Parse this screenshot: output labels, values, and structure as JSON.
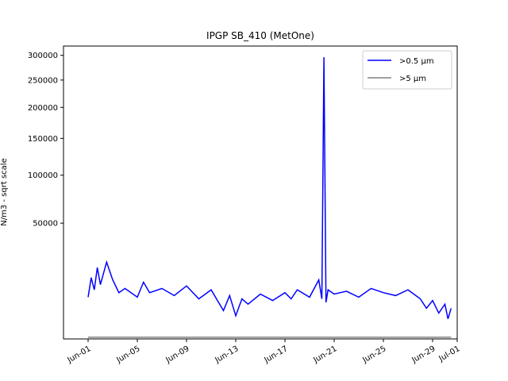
{
  "chart_data": {
    "type": "line",
    "title": "IPGP SB_410 (MetOne)",
    "xlabel": "",
    "ylabel": "N/m3 - sqrt scale",
    "y_scale": "sqrt",
    "ylim": [
      0,
      320000
    ],
    "xlim": [
      "2024-05-30",
      "2024-07-01"
    ],
    "x_ticks": [
      {
        "date": "2024-06-01",
        "label": "Jun-01"
      },
      {
        "date": "2024-06-05",
        "label": "Jun-05"
      },
      {
        "date": "2024-06-09",
        "label": "Jun-09"
      },
      {
        "date": "2024-06-13",
        "label": "Jun-13"
      },
      {
        "date": "2024-06-17",
        "label": "Jun-17"
      },
      {
        "date": "2024-06-21",
        "label": "Jun-21"
      },
      {
        "date": "2024-06-25",
        "label": "Jun-25"
      },
      {
        "date": "2024-06-29",
        "label": "Jun-29"
      },
      {
        "date": "2024-07-01",
        "label": "Jul-01"
      }
    ],
    "y_ticks": [
      {
        "value": 50000,
        "label": "50000"
      },
      {
        "value": 100000,
        "label": "100000"
      },
      {
        "value": 150000,
        "label": "150000"
      },
      {
        "value": 200000,
        "label": "200000"
      },
      {
        "value": 250000,
        "label": "250000"
      },
      {
        "value": 300000,
        "label": "300000"
      }
    ],
    "legend": "top-right",
    "grid": false,
    "series": [
      {
        "name": ">0.5 µm",
        "color": "#0000ff",
        "x": [
          "2024-06-01",
          "2024-06-01T06:00",
          "2024-06-01T12:00",
          "2024-06-01T18:00",
          "2024-06-02",
          "2024-06-02T12:00",
          "2024-06-03",
          "2024-06-03T12:00",
          "2024-06-04",
          "2024-06-05",
          "2024-06-05T12:00",
          "2024-06-06",
          "2024-06-07",
          "2024-06-08",
          "2024-06-09",
          "2024-06-10",
          "2024-06-11",
          "2024-06-12",
          "2024-06-12T12:00",
          "2024-06-13",
          "2024-06-13T12:00",
          "2024-06-14",
          "2024-06-15",
          "2024-06-16",
          "2024-06-17",
          "2024-06-17T12:00",
          "2024-06-18",
          "2024-06-19",
          "2024-06-19T18:00",
          "2024-06-20",
          "2024-06-20T04:00",
          "2024-06-20T08:00",
          "2024-06-20T12:00",
          "2024-06-21",
          "2024-06-22",
          "2024-06-23",
          "2024-06-24",
          "2024-06-25",
          "2024-06-26",
          "2024-06-27",
          "2024-06-28",
          "2024-06-28T12:00",
          "2024-06-29",
          "2024-06-29T12:00",
          "2024-06-30",
          "2024-06-30T06:00",
          "2024-06-30T12:00"
        ],
        "values": [
          6500,
          14000,
          9000,
          19000,
          11000,
          22000,
          13000,
          8000,
          9500,
          6500,
          12000,
          8000,
          9500,
          7000,
          10500,
          6000,
          9000,
          3000,
          7000,
          2000,
          6000,
          4500,
          7500,
          5500,
          8000,
          6000,
          9000,
          6500,
          13000,
          6000,
          296000,
          5000,
          9000,
          7500,
          8500,
          6500,
          9500,
          8000,
          7000,
          9000,
          6000,
          3500,
          5500,
          2500,
          4500,
          1500,
          3500
        ]
      },
      {
        "name": ">5 µm",
        "color": "#808080",
        "x": [
          "2024-06-01",
          "2024-06-30T12:00"
        ],
        "values": [
          10,
          10
        ]
      }
    ]
  }
}
